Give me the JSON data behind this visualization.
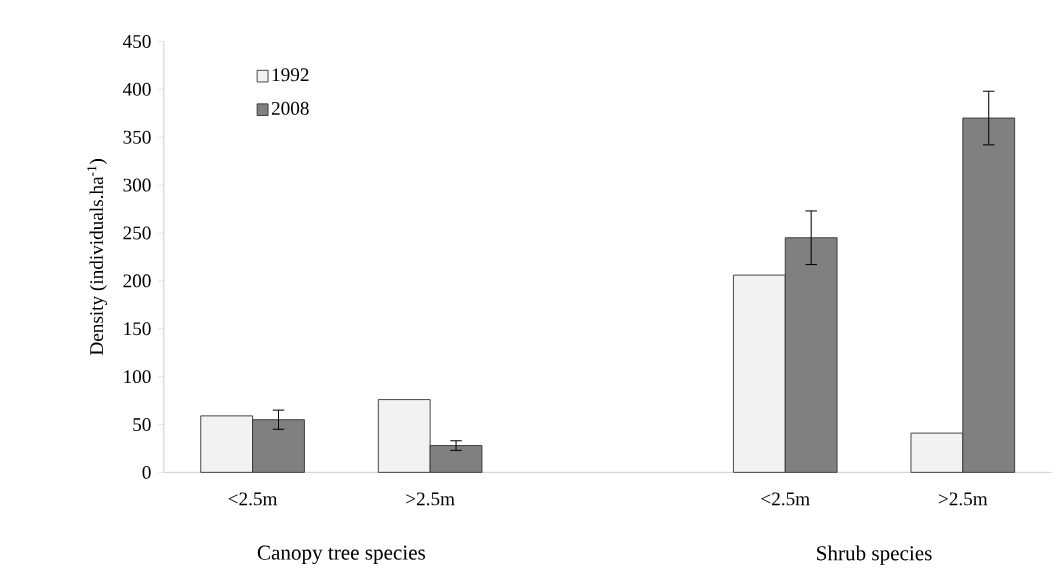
{
  "chart_data": {
    "type": "bar",
    "ylabel": "Density (individuals.ha$^{-1}$)",
    "categories": [
      "<2.5m",
      ">2.5m",
      null,
      "<2.5m",
      ">2.5m"
    ],
    "series": [
      {
        "name": "1992",
        "color": "#f2f2f2",
        "values": [
          59,
          76,
          null,
          206,
          41
        ]
      },
      {
        "name": "2008",
        "color": "#808080",
        "values": [
          55,
          28,
          null,
          245,
          370
        ],
        "errors": [
          10,
          5,
          null,
          28,
          28
        ]
      }
    ],
    "ylim": [
      0,
      450
    ],
    "yticks": [
      0,
      50,
      100,
      150,
      200,
      250,
      300,
      350,
      400,
      450
    ],
    "annotations": [
      "Canopy tree species",
      "Shrub species"
    ],
    "legend": "top left",
    "grid": false
  }
}
